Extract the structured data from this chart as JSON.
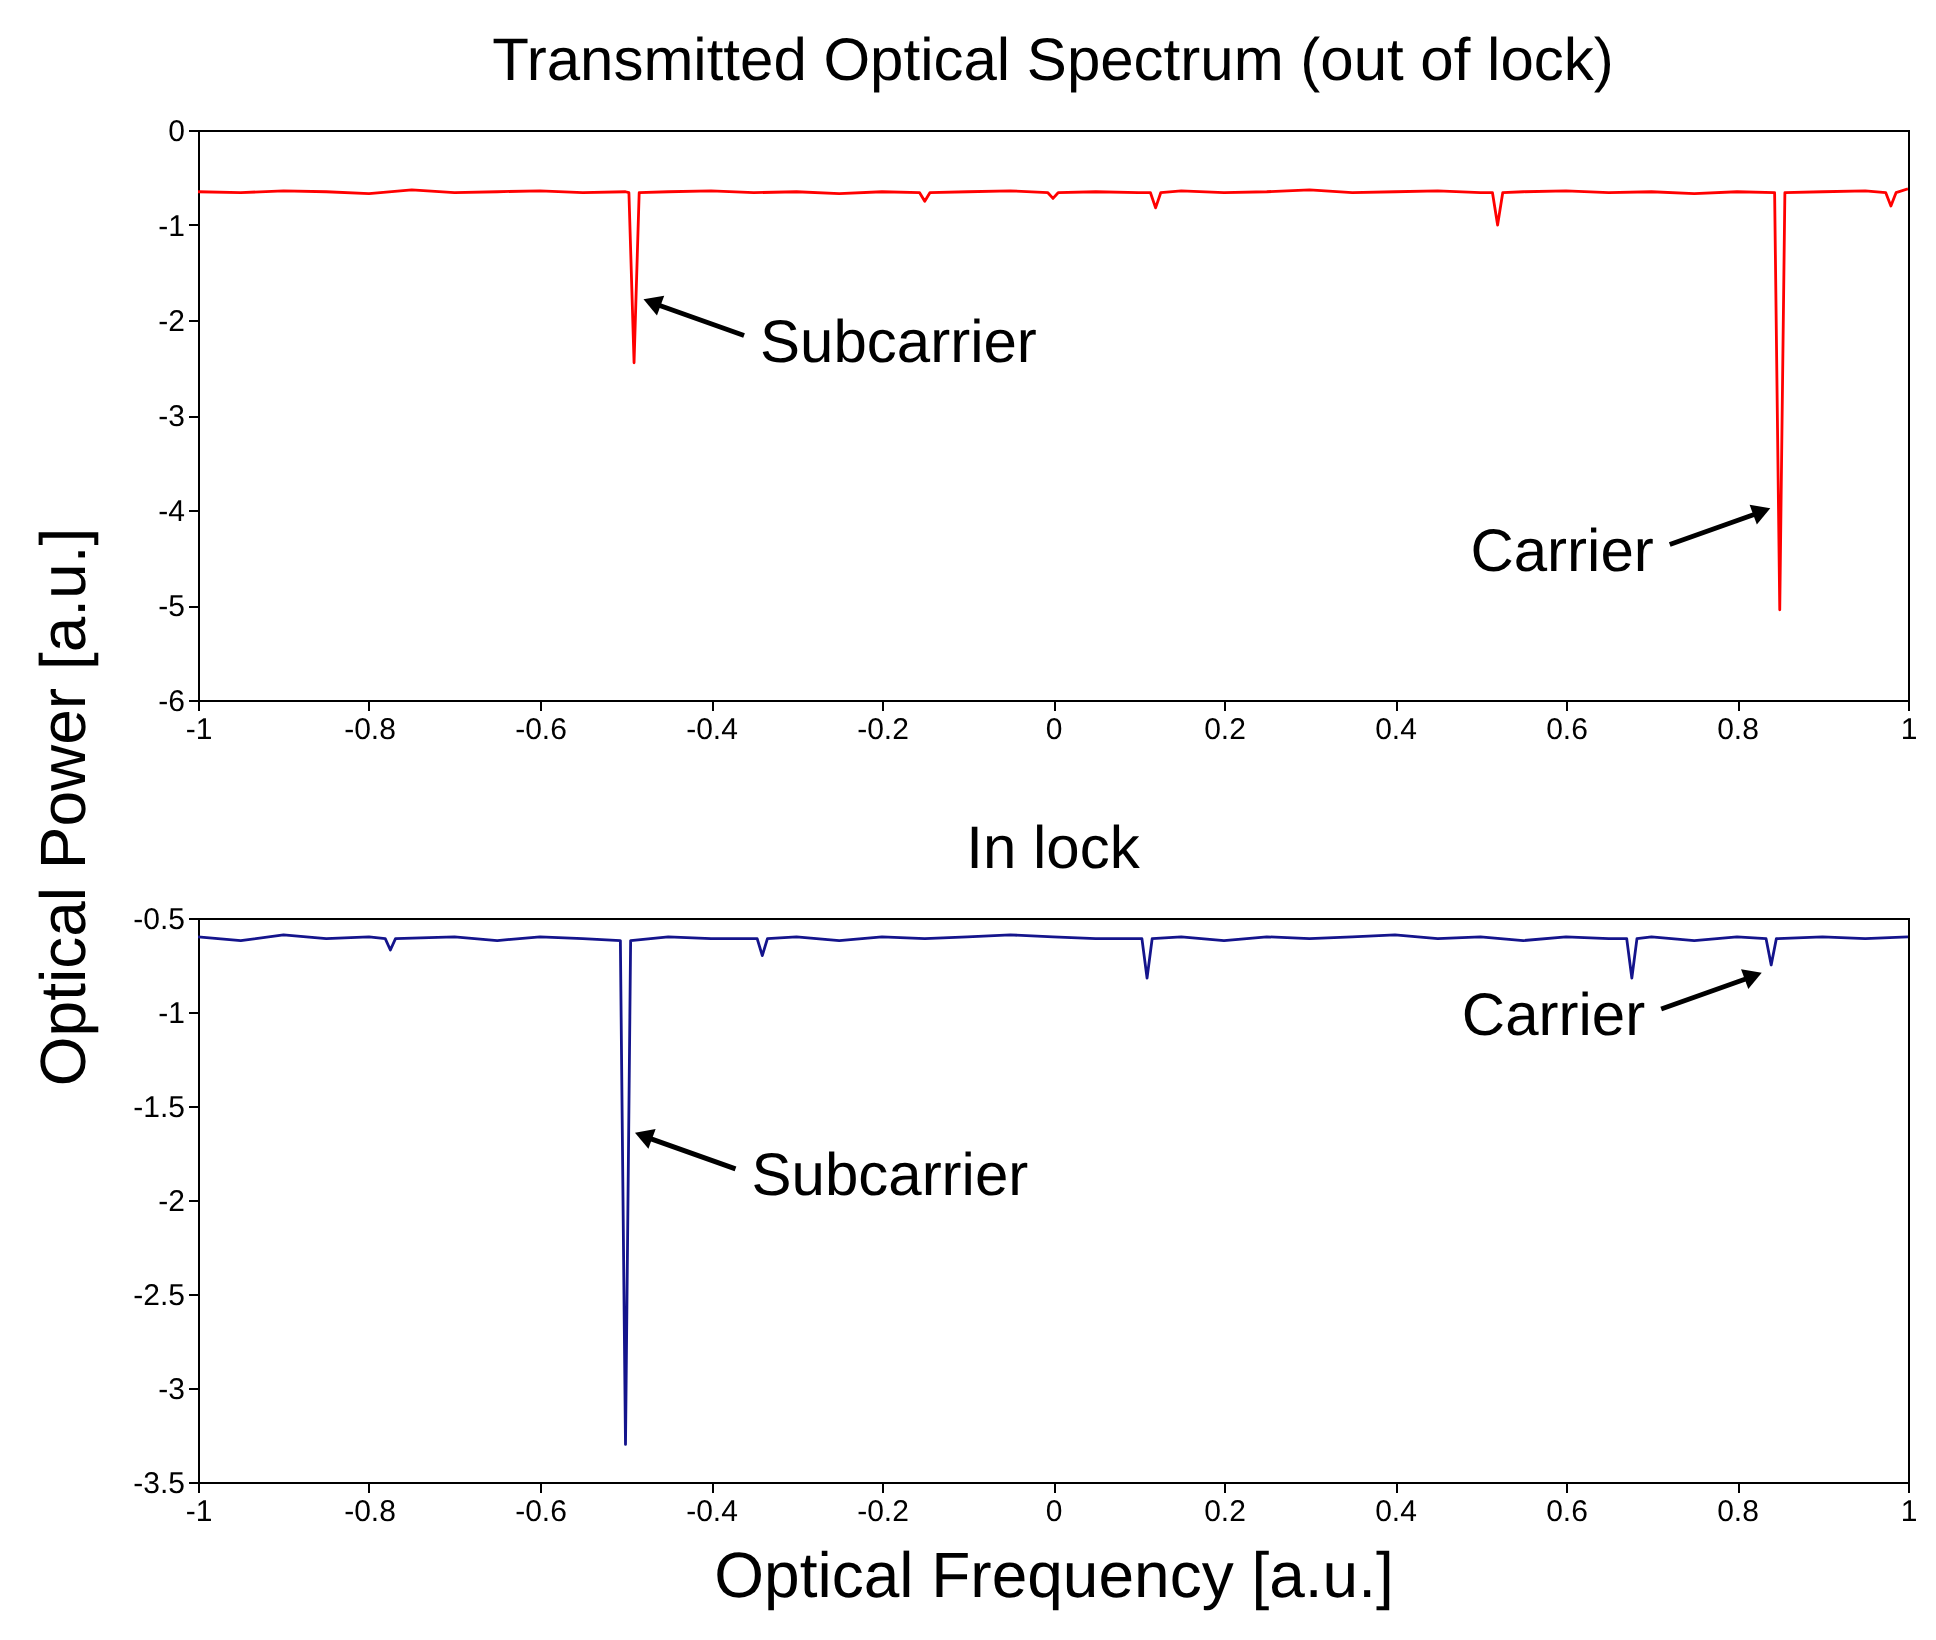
{
  "chart_data": [
    {
      "type": "line",
      "title": "Transmitted Optical Spectrum (out of lock)",
      "ylabel": "Optical Power [a.u.]",
      "xlim": [
        -1,
        1
      ],
      "xticks": [
        -1,
        -0.8,
        -0.6,
        -0.4,
        -0.2,
        0,
        0.2,
        0.4,
        0.6,
        0.8,
        1
      ],
      "ylim": [
        -6,
        0
      ],
      "yticks": [
        -6,
        -5,
        -4,
        -3,
        -2,
        -1,
        0
      ],
      "series": [
        {
          "color": "#ff0000",
          "x": [
            -1,
            -0.95,
            -0.9,
            -0.85,
            -0.8,
            -0.75,
            -0.7,
            -0.65,
            -0.6,
            -0.55,
            -0.5,
            -0.496,
            -0.49,
            -0.484,
            -0.45,
            -0.4,
            -0.35,
            -0.3,
            -0.25,
            -0.2,
            -0.156,
            -0.15,
            -0.144,
            -0.1,
            -0.05,
            -0.006,
            0,
            0.006,
            0.05,
            0.1,
            0.114,
            0.12,
            0.126,
            0.15,
            0.2,
            0.25,
            0.3,
            0.35,
            0.4,
            0.45,
            0.5,
            0.514,
            0.52,
            0.526,
            0.55,
            0.6,
            0.65,
            0.7,
            0.75,
            0.8,
            0.844,
            0.85,
            0.856,
            0.9,
            0.95,
            0.974,
            0.98,
            0.986,
            1
          ],
          "values": [
            -0.65,
            -0.66,
            -0.64,
            -0.65,
            -0.67,
            -0.63,
            -0.66,
            -0.65,
            -0.64,
            -0.66,
            -0.65,
            -0.66,
            -2.45,
            -0.66,
            -0.65,
            -0.64,
            -0.66,
            -0.65,
            -0.67,
            -0.65,
            -0.66,
            -0.75,
            -0.66,
            -0.65,
            -0.64,
            -0.66,
            -0.72,
            -0.66,
            -0.65,
            -0.66,
            -0.66,
            -0.82,
            -0.66,
            -0.64,
            -0.66,
            -0.65,
            -0.63,
            -0.66,
            -0.65,
            -0.64,
            -0.66,
            -0.66,
            -1.0,
            -0.66,
            -0.65,
            -0.64,
            -0.66,
            -0.65,
            -0.67,
            -0.65,
            -0.66,
            -5.05,
            -0.66,
            -0.65,
            -0.64,
            -0.66,
            -0.8,
            -0.66,
            -0.62
          ]
        }
      ],
      "annotations": [
        {
          "text": "Subcarrier",
          "x": -0.49,
          "y": -1.7
        },
        {
          "text": "Carrier",
          "x": 0.85,
          "y": -3.9
        }
      ]
    },
    {
      "type": "line",
      "title": "In lock",
      "xlabel": "Optical Frequency [a.u.]",
      "xlim": [
        -1,
        1
      ],
      "xticks": [
        -1,
        -0.8,
        -0.6,
        -0.4,
        -0.2,
        0,
        0.2,
        0.4,
        0.6,
        0.8,
        1
      ],
      "ylim": [
        -3.5,
        -0.5
      ],
      "yticks": [
        -3.5,
        -3,
        -2.5,
        -2,
        -1.5,
        -1,
        -0.5
      ],
      "series": [
        {
          "color": "#14148c",
          "x": [
            -1,
            -0.95,
            -0.9,
            -0.85,
            -0.8,
            -0.781,
            -0.775,
            -0.769,
            -0.7,
            -0.65,
            -0.6,
            -0.55,
            -0.506,
            -0.5,
            -0.494,
            -0.45,
            -0.4,
            -0.346,
            -0.34,
            -0.334,
            -0.3,
            -0.25,
            -0.2,
            -0.15,
            -0.1,
            -0.05,
            0,
            0.05,
            0.104,
            0.11,
            0.116,
            0.15,
            0.2,
            0.25,
            0.3,
            0.35,
            0.4,
            0.45,
            0.5,
            0.55,
            0.6,
            0.65,
            0.671,
            0.677,
            0.683,
            0.7,
            0.75,
            0.8,
            0.834,
            0.84,
            0.846,
            0.9,
            0.95,
            1
          ],
          "values": [
            -0.6,
            -0.62,
            -0.59,
            -0.61,
            -0.6,
            -0.61,
            -0.67,
            -0.61,
            -0.6,
            -0.62,
            -0.6,
            -0.61,
            -0.62,
            -3.3,
            -0.62,
            -0.6,
            -0.61,
            -0.61,
            -0.7,
            -0.61,
            -0.6,
            -0.62,
            -0.6,
            -0.61,
            -0.6,
            -0.59,
            -0.6,
            -0.61,
            -0.61,
            -0.82,
            -0.61,
            -0.6,
            -0.62,
            -0.6,
            -0.61,
            -0.6,
            -0.59,
            -0.61,
            -0.6,
            -0.62,
            -0.6,
            -0.61,
            -0.61,
            -0.82,
            -0.61,
            -0.6,
            -0.62,
            -0.6,
            -0.61,
            -0.75,
            -0.61,
            -0.6,
            -0.61,
            -0.6
          ]
        }
      ],
      "annotations": [
        {
          "text": "Subcarrier",
          "x": -0.5,
          "y": -1.6
        },
        {
          "text": "Carrier",
          "x": 0.84,
          "y": -0.75
        }
      ]
    }
  ]
}
